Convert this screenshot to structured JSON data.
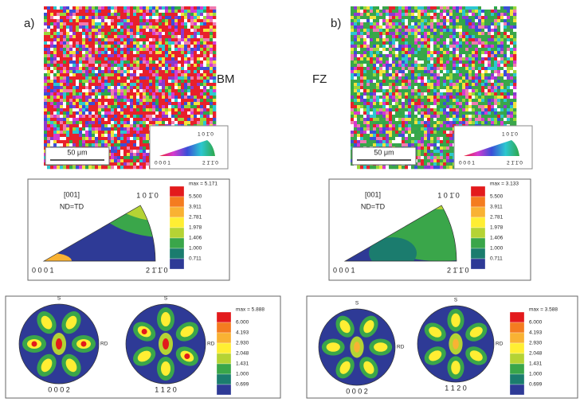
{
  "panels": [
    {
      "label": "a)",
      "region": "BM",
      "scale_bar": "50 μm",
      "ipf_key": {
        "top": "1 0 1̄ 0",
        "left": "0 0 0 1",
        "right": "2 1̄ 1̄ 0"
      },
      "ipf": {
        "direction": "[001]",
        "frame": "ND=TD",
        "top": "1 0 1̄ 0",
        "left": "0 0 0 1",
        "right": "2 1̄ 1̄ 0",
        "max": "max = 5.171",
        "levels": [
          "5.500",
          "3.911",
          "2.781",
          "1.978",
          "1.406",
          "1.000",
          "0.711"
        ]
      },
      "pole_figures": {
        "max": "max = 5.888",
        "levels": [
          "6.000",
          "4.193",
          "2.930",
          "2.048",
          "1.431",
          "1.000",
          "0.699"
        ],
        "figures": [
          {
            "top": "S",
            "right": "RD",
            "bottom": "0 0 0 2"
          },
          {
            "top": "S",
            "right": "RD",
            "bottom": "1 1 2 0"
          }
        ]
      }
    },
    {
      "label": "b)",
      "region": "FZ",
      "scale_bar": "50 μm",
      "ipf_key": {
        "top": "1 0 1̄ 0",
        "left": "0 0 0 1",
        "right": "2 1̄ 1̄ 0"
      },
      "ipf": {
        "direction": "[001]",
        "frame": "ND=TD",
        "top": "1 0 1̄ 0",
        "left": "0 0 0 1",
        "right": "2 1̄ 1̄ 0",
        "max": "max = 3.133",
        "levels": [
          "5.500",
          "3.911",
          "2.781",
          "1.978",
          "1.406",
          "1.000",
          "0.711"
        ]
      },
      "pole_figures": {
        "max": "max = 3.588",
        "levels": [
          "6.000",
          "4.193",
          "2.930",
          "2.048",
          "1.431",
          "1.000",
          "0.699"
        ],
        "figures": [
          {
            "top": "S",
            "right": "RD",
            "bottom": "0 0 0 2"
          },
          {
            "top": "S",
            "right": "RD",
            "bottom": "1 1 2 0"
          }
        ]
      }
    }
  ]
}
